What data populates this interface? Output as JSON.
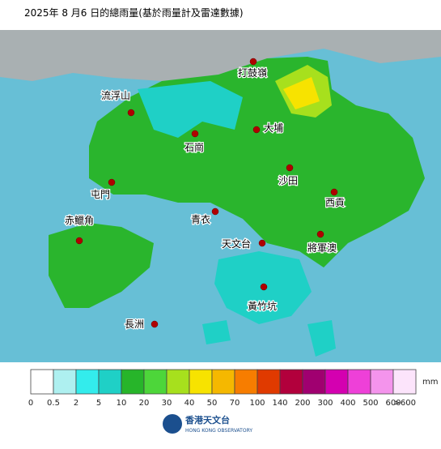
{
  "header": {
    "title": "2025年 8 月6 日的總雨量(基於雨量計及雷達數據)"
  },
  "stations": [
    {
      "label": "打鼓嶺"
    },
    {
      "label": "流浮山"
    },
    {
      "label": "大埔"
    },
    {
      "label": "石崗"
    },
    {
      "label": "屯門"
    },
    {
      "label": "沙田"
    },
    {
      "label": "西貢"
    },
    {
      "label": "赤鱲角"
    },
    {
      "label": "青衣"
    },
    {
      "label": "天文台"
    },
    {
      "label": "將軍澳"
    },
    {
      "label": "黃竹坑"
    },
    {
      "label": "長洲"
    }
  ],
  "legend": {
    "unit": "mm",
    "colors": [
      "#ffffff",
      "#aef0f0",
      "#33ecec",
      "#1fd0c6",
      "#27b52a",
      "#4dd63a",
      "#a7e01d",
      "#f7e300",
      "#f5b800",
      "#f77d00",
      "#e03a00",
      "#b2003c",
      "#a00070",
      "#d400b0",
      "#ee40d8",
      "#f494ec",
      "#fce4fb"
    ],
    "labels": [
      "0",
      "0.5",
      "2",
      "5",
      "10",
      "20",
      "30",
      "40",
      "50",
      "70",
      "100",
      "140",
      "200",
      "300",
      "400",
      "500",
      "600",
      ">600"
    ]
  },
  "logo": {
    "name": "香港天文台",
    "english": "HONG KONG OBSERVATORY"
  }
}
